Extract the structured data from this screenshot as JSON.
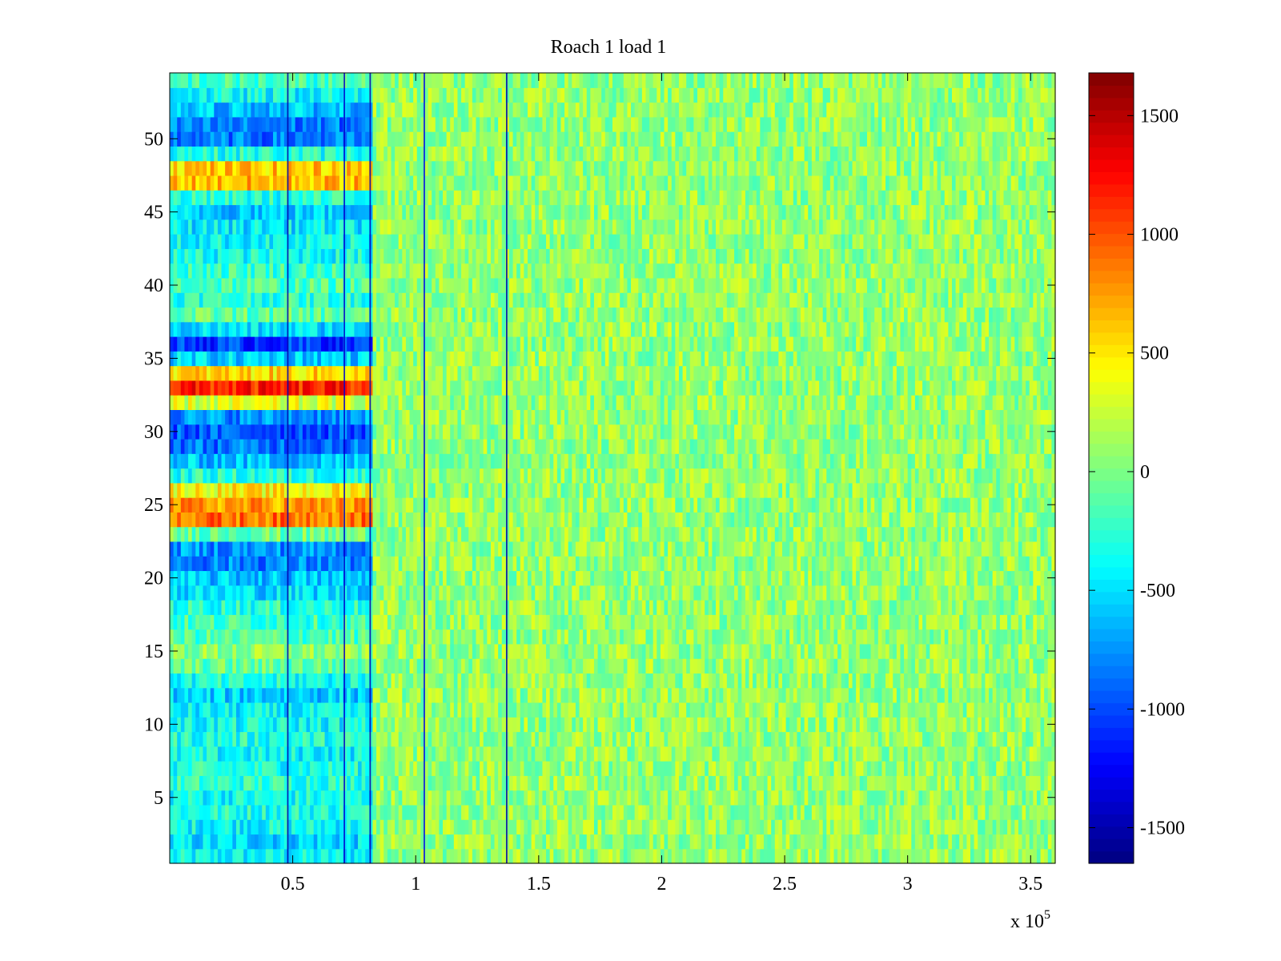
{
  "chart_data": {
    "type": "heatmap",
    "title": "Roach 1 load 1",
    "xlabel": "",
    "ylabel": "",
    "x_multiplier": {
      "base": "x 10",
      "exponent": "5"
    },
    "xlim": [
      0,
      3.6
    ],
    "ylim": [
      0.5,
      54.5
    ],
    "x_ticks": [
      0.5,
      1,
      1.5,
      2,
      2.5,
      3,
      3.5
    ],
    "x_tick_labels": [
      "0.5",
      "1",
      "1.5",
      "2",
      "2.5",
      "3",
      "3.5"
    ],
    "y_ticks": [
      5,
      10,
      15,
      20,
      25,
      30,
      35,
      40,
      45,
      50
    ],
    "y_tick_labels": [
      "5",
      "10",
      "15",
      "20",
      "25",
      "30",
      "35",
      "40",
      "45",
      "50"
    ],
    "n_rows": 54,
    "colormap": "jet",
    "clim": [
      -1650,
      1680
    ],
    "colorbar": {
      "ticks": [
        -1500,
        -1000,
        -500,
        0,
        500,
        1000,
        1500
      ],
      "tick_labels": [
        "-1500",
        "-1000",
        "-500",
        "0",
        "500",
        "1000",
        "1500"
      ]
    },
    "background_mean": 80,
    "initial_segment": {
      "x_end": 0.82,
      "row_means": [
        {
          "row": 1,
          "value": -420
        },
        {
          "row": 2,
          "value": -520
        },
        {
          "row": 3,
          "value": -380
        },
        {
          "row": 4,
          "value": -300
        },
        {
          "row": 5,
          "value": -360
        },
        {
          "row": 6,
          "value": -250
        },
        {
          "row": 7,
          "value": -320
        },
        {
          "row": 8,
          "value": -400
        },
        {
          "row": 9,
          "value": -300
        },
        {
          "row": 10,
          "value": -380
        },
        {
          "row": 11,
          "value": -450
        },
        {
          "row": 12,
          "value": -550
        },
        {
          "row": 13,
          "value": -350
        },
        {
          "row": 14,
          "value": -80
        },
        {
          "row": 15,
          "value": 50
        },
        {
          "row": 16,
          "value": -150
        },
        {
          "row": 17,
          "value": -200
        },
        {
          "row": 18,
          "value": -280
        },
        {
          "row": 19,
          "value": -500
        },
        {
          "row": 20,
          "value": -600
        },
        {
          "row": 21,
          "value": -800
        },
        {
          "row": 22,
          "value": -750
        },
        {
          "row": 23,
          "value": -50
        },
        {
          "row": 24,
          "value": 900
        },
        {
          "row": 25,
          "value": 750
        },
        {
          "row": 26,
          "value": 450
        },
        {
          "row": 27,
          "value": -300
        },
        {
          "row": 28,
          "value": -600
        },
        {
          "row": 29,
          "value": -850
        },
        {
          "row": 30,
          "value": -950
        },
        {
          "row": 31,
          "value": -750
        },
        {
          "row": 32,
          "value": 300
        },
        {
          "row": 33,
          "value": 1150
        },
        {
          "row": 34,
          "value": 550
        },
        {
          "row": 35,
          "value": -550
        },
        {
          "row": 36,
          "value": -1050
        },
        {
          "row": 37,
          "value": -500
        },
        {
          "row": 38,
          "value": -100
        },
        {
          "row": 39,
          "value": -250
        },
        {
          "row": 40,
          "value": -150
        },
        {
          "row": 41,
          "value": -200
        },
        {
          "row": 42,
          "value": -350
        },
        {
          "row": 43,
          "value": -400
        },
        {
          "row": 44,
          "value": -450
        },
        {
          "row": 45,
          "value": -550
        },
        {
          "row": 46,
          "value": -300
        },
        {
          "row": 47,
          "value": 650
        },
        {
          "row": 48,
          "value": 600
        },
        {
          "row": 49,
          "value": -300
        },
        {
          "row": 50,
          "value": -850
        },
        {
          "row": 51,
          "value": -850
        },
        {
          "row": 52,
          "value": -600
        },
        {
          "row": 53,
          "value": -400
        },
        {
          "row": 54,
          "value": -200
        }
      ]
    },
    "vertical_artifacts": [
      {
        "x": 0.48,
        "value": -1500
      },
      {
        "x": 0.71,
        "value": -1400
      },
      {
        "x": 0.815,
        "value": -1500
      },
      {
        "x": 1.035,
        "value": -1300
      },
      {
        "x": 1.37,
        "value": -1500
      }
    ]
  }
}
